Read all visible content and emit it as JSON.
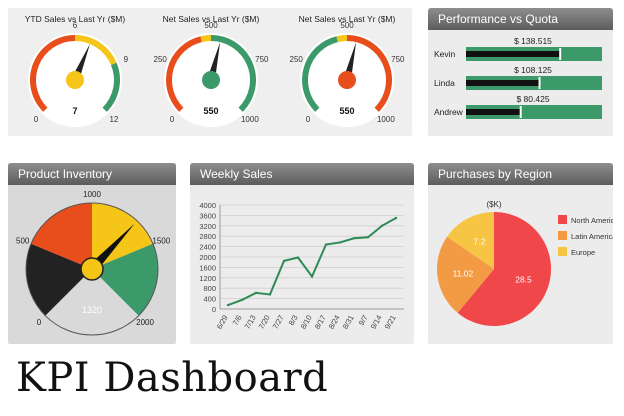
{
  "gauges": [
    {
      "title": "YTD Sales vs Last Yr ($M)",
      "value": 7,
      "value_label": "7",
      "min": 0,
      "max": 12,
      "ticks": [
        "0",
        "6",
        "9",
        "12"
      ],
      "tick_values": [
        0,
        6,
        9,
        12
      ],
      "zones": [
        {
          "from": 0,
          "to": 6,
          "color": "#e84e1b"
        },
        {
          "from": 6,
          "to": 9,
          "color": "#f5c518"
        },
        {
          "from": 9,
          "to": 12,
          "color": "#3c9a6a"
        }
      ],
      "needle_color": "#f5c518"
    },
    {
      "title": "Net Sales vs Last Yr ($M)",
      "value": 550,
      "value_label": "550",
      "min": 0,
      "max": 1000,
      "ticks": [
        "0",
        "250",
        "500",
        "750",
        "1000"
      ],
      "tick_values": [
        0,
        250,
        500,
        750,
        1000
      ],
      "zones": [
        {
          "from": 0,
          "to": 450,
          "color": "#e84e1b"
        },
        {
          "from": 450,
          "to": 500,
          "color": "#f5c518"
        },
        {
          "from": 500,
          "to": 1000,
          "color": "#3c9a6a"
        }
      ],
      "needle_color": "#3c9a6a"
    },
    {
      "title": "Net Sales vs Last Yr ($M)",
      "value": 550,
      "value_label": "550",
      "min": 0,
      "max": 1000,
      "ticks": [
        "0",
        "250",
        "500",
        "750",
        "1000"
      ],
      "tick_values": [
        0,
        250,
        500,
        750,
        1000
      ],
      "zones": [
        {
          "from": 0,
          "to": 450,
          "color": "#3c9a6a"
        },
        {
          "from": 450,
          "to": 500,
          "color": "#f5c518"
        },
        {
          "from": 500,
          "to": 1000,
          "color": "#e84e1b"
        }
      ],
      "needle_color": "#e84e1b"
    }
  ],
  "performance": {
    "title": "Performance vs Quota",
    "rows": [
      {
        "name": "Kevin",
        "label": "$ 138.515",
        "value": 138.515
      },
      {
        "name": "Linda",
        "label": "$ 108.125",
        "value": 108.125
      },
      {
        "name": "Andrew",
        "label": "$ 80.425",
        "value": 80.425
      }
    ],
    "axis_max": 200,
    "bar_color": "#3c9a6a"
  },
  "inventory": {
    "title": "Product Inventory",
    "value": 1320,
    "value_label": "1320",
    "min": 0,
    "max": 2000,
    "ticks": [
      "0",
      "500",
      "1000",
      "1500",
      "2000"
    ],
    "tick_values": [
      0,
      500,
      1000,
      1500,
      2000
    ],
    "zones": [
      {
        "from": 0,
        "to": 500,
        "color": "#222222"
      },
      {
        "from": 500,
        "to": 1000,
        "color": "#e84e1b"
      },
      {
        "from": 1000,
        "to": 1500,
        "color": "#f5c518"
      },
      {
        "from": 1500,
        "to": 2000,
        "color": "#3c9a6a"
      }
    ]
  },
  "chart_data": [
    {
      "type": "line",
      "title": "Weekly Sales",
      "x": [
        "6/29",
        "7/6",
        "7/13",
        "7/20",
        "7/27",
        "8/3",
        "8/10",
        "8/17",
        "8/24",
        "8/31",
        "9/7",
        "9/14",
        "9/21"
      ],
      "series": [
        {
          "values": [
            150,
            350,
            620,
            560,
            1850,
            1980,
            1250,
            2480,
            2560,
            2720,
            2760,
            3200,
            3500
          ]
        }
      ],
      "yticks": [
        "0",
        "400",
        "800",
        "1200",
        "1600",
        "2000",
        "2400",
        "2800",
        "3200",
        "3600",
        "4000"
      ],
      "ylim": [
        0,
        4000
      ],
      "color": "#2f8a55"
    },
    {
      "type": "pie",
      "title": "Purchases by Region",
      "subtitle": "($K)",
      "slices": [
        {
          "name": "North America",
          "value": 28.5,
          "label": "28.5",
          "color": "#f0474a"
        },
        {
          "name": "Latin America",
          "value": 11.02,
          "label": "11.02",
          "color": "#f39a45"
        },
        {
          "name": "Europe",
          "value": 7.2,
          "label": "7.2",
          "color": "#f7c544"
        }
      ]
    }
  ],
  "footer_title": "KPI Dashboard"
}
